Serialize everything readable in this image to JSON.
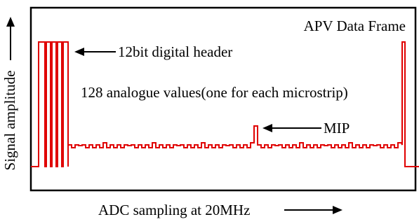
{
  "frame_title": "APV Data Frame",
  "header_annotation": "12bit digital header",
  "analogue_annotation": "128 analogue values(one for each microstrip)",
  "mip_annotation": "MIP",
  "x_axis_label": "ADC sampling at 20MHz",
  "y_axis_label": "Signal amplitude",
  "colors": {
    "signal": "#e00000",
    "frame": "#000000",
    "text": "#000000"
  },
  "signal": {
    "header_bits": 12,
    "analogue_values": 128,
    "mip_channel": 64
  }
}
